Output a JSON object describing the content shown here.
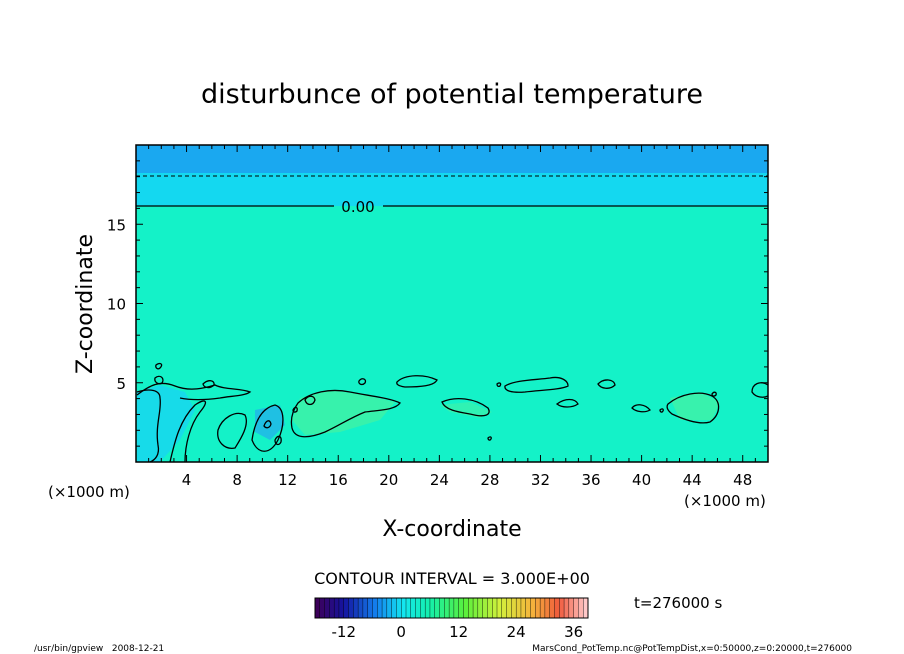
{
  "chart_data": {
    "type": "heatmap",
    "title": "disturbunce of potential temperature",
    "xlabel": "X-coordinate",
    "ylabel": "Z-coordinate",
    "x_unit": "(×1000 m)",
    "y_unit": "(×1000 m)",
    "xlim": [
      0,
      50
    ],
    "ylim": [
      0,
      20
    ],
    "x_ticks": [
      4,
      8,
      12,
      16,
      20,
      24,
      28,
      32,
      36,
      40,
      44,
      48
    ],
    "y_ticks": [
      5,
      10,
      15
    ],
    "contour_label": "0.00",
    "contour_interval_label": "CONTOUR INTERVAL = 3.000E+00",
    "time_label": "t=276000 s",
    "colorbar": {
      "range": [
        -18,
        39
      ],
      "ticks": [
        -12,
        0,
        12,
        24,
        36
      ]
    },
    "fields": {
      "field_value": 0,
      "upper_layer_value": -3,
      "top_layer_value": -6,
      "zero_contour_height": 16.1,
      "dashed_contour_height": 18.2
    }
  },
  "footer": {
    "left": "/usr/bin/gpview   2008-12-21",
    "right": "MarsCond_PotTemp.nc@PotTempDist,x=0:50000,z=0:20000,t=276000"
  },
  "colors": {
    "field": "#14f2c8",
    "upper_layer": "#14d8f0",
    "top_layer": "#1aa8f0",
    "cool_patch": "#18d8ef",
    "warm_patch": "#3ef2a8"
  }
}
